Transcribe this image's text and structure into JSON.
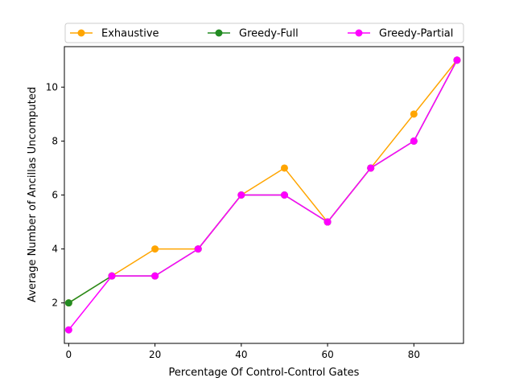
{
  "chart_data": {
    "type": "line",
    "title": "",
    "xlabel": "Percentage Of Control-Control Gates",
    "ylabel": "Average Number of Ancillas Uncomputed",
    "x": [
      0,
      10,
      20,
      30,
      40,
      50,
      60,
      70,
      80,
      90
    ],
    "xlim": [
      -1,
      91.5
    ],
    "ylim": [
      0.5,
      11.5
    ],
    "xticks": [
      0,
      20,
      40,
      60,
      80
    ],
    "yticks": [
      2,
      4,
      6,
      8,
      10
    ],
    "grid": false,
    "legend_position": "top",
    "series": [
      {
        "name": "Exhaustive",
        "color": "#ffa500",
        "values": [
          2,
          3,
          4,
          4,
          6,
          7,
          5,
          7,
          9,
          11
        ]
      },
      {
        "name": "Greedy-Full",
        "color": "#228b22",
        "values": [
          2,
          3,
          3,
          4,
          6,
          6,
          5,
          7,
          8,
          11
        ]
      },
      {
        "name": "Greedy-Partial",
        "color": "#ff00ff",
        "values": [
          1,
          3,
          3,
          4,
          6,
          6,
          5,
          7,
          8,
          11
        ]
      }
    ]
  }
}
